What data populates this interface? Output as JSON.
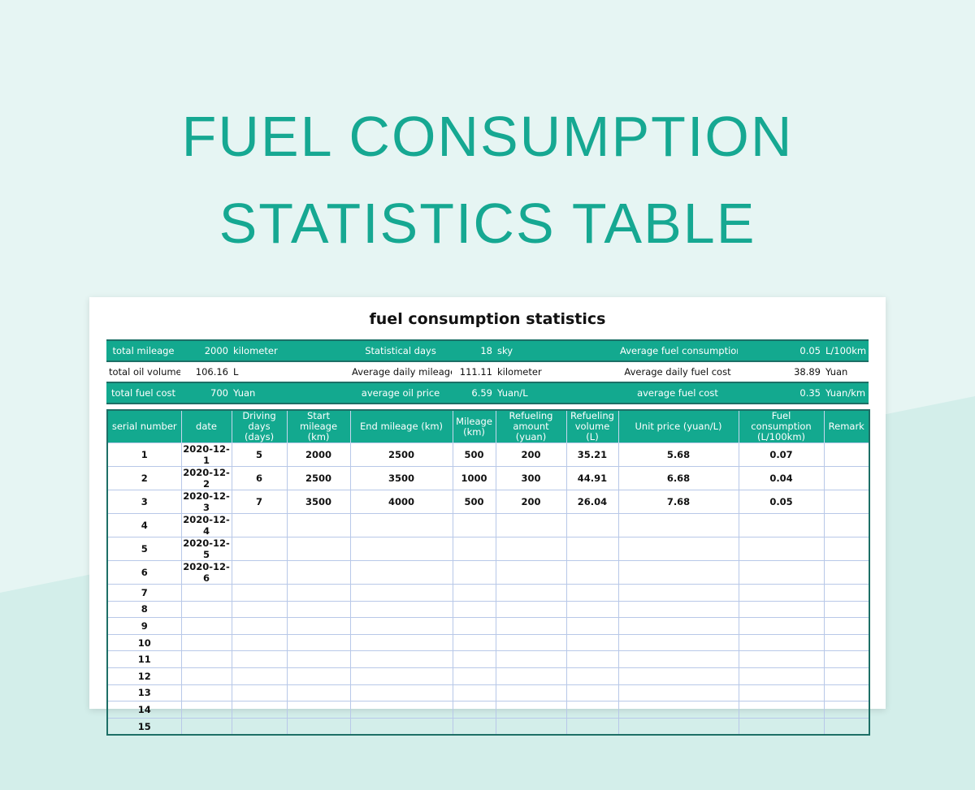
{
  "header": {
    "title_line1": "FUEL CONSUMPTION",
    "title_line2": "STATISTICS TABLE"
  },
  "sheet_title": "fuel consumption statistics",
  "summary": [
    [
      {
        "label": "total mileage",
        "value": 2000,
        "unit": "kilometer"
      },
      {
        "label": "Statistical days",
        "value": 18,
        "unit": "sky"
      },
      {
        "label": "Average fuel consumption",
        "value": 0.05,
        "unit": "L/100km"
      }
    ],
    [
      {
        "label": "total oil volume",
        "value": 106.16,
        "unit": "L"
      },
      {
        "label": "Average daily mileage",
        "value": 111.11,
        "unit": "kilometer"
      },
      {
        "label": "Average daily fuel cost",
        "value": 38.89,
        "unit": "Yuan"
      }
    ],
    [
      {
        "label": "total fuel cost",
        "value": 700,
        "unit": "Yuan"
      },
      {
        "label": "average oil price",
        "value": 6.59,
        "unit": "Yuan/L"
      },
      {
        "label": "average fuel cost",
        "value": 0.35,
        "unit": "Yuan/km"
      }
    ]
  ],
  "table": {
    "columns": [
      "serial number",
      "date",
      "Driving days (days)",
      "Start mileage (km)",
      "End mileage (km)",
      "Mileage (km)",
      "Refueling amount (yuan)",
      "Refueling volume (L)",
      "Unit price (yuan/L)",
      "Fuel consumption (L/100km)",
      "Remark"
    ],
    "rows": [
      [
        1,
        "2020-12-1",
        5,
        2000,
        2500,
        500,
        200,
        35.21,
        5.68,
        0.07
      ],
      [
        2,
        "2020-12-2",
        6,
        2500,
        3500,
        1000,
        300,
        44.91,
        6.68,
        0.04
      ],
      [
        3,
        "2020-12-3",
        7,
        3500,
        4000,
        500,
        200,
        26.04,
        7.68,
        0.05
      ],
      [
        4,
        "2020-12-4"
      ],
      [
        5,
        "2020-12-5"
      ],
      [
        6,
        "2020-12-6"
      ],
      [
        7
      ],
      [
        8
      ],
      [
        9
      ],
      [
        10
      ],
      [
        11
      ],
      [
        12
      ],
      [
        13
      ],
      [
        14
      ],
      [
        15
      ]
    ]
  }
}
